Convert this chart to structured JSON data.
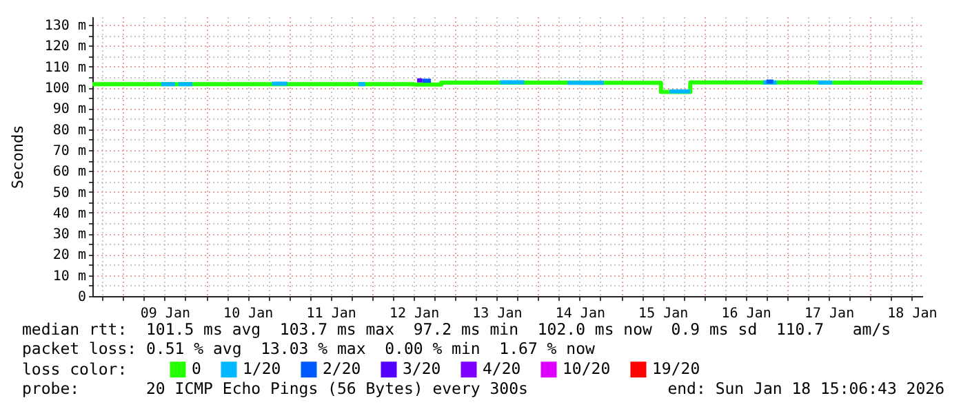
{
  "chart_data": {
    "type": "step",
    "ylabel": "Seconds",
    "legend_title": "loss color:",
    "legend": "bottom",
    "grid": true,
    "line_style": "solid",
    "marker": "none",
    "xlim": [
      "2026-01-08T15:06",
      "2026-01-18T15:06"
    ],
    "xticks": [
      {
        "value": "2026-01-08T18:00",
        "label": null
      },
      {
        "value": "2026-01-09T00:00",
        "label": null
      },
      {
        "value": "2026-01-09T06:00",
        "label": null
      },
      {
        "value": "2026-01-09T12:00",
        "label": "09 Jan"
      },
      {
        "value": "2026-01-09T18:00",
        "label": null
      },
      {
        "value": "2026-01-10T00:00",
        "label": null
      },
      {
        "value": "2026-01-10T06:00",
        "label": null
      },
      {
        "value": "2026-01-10T12:00",
        "label": "10 Jan"
      },
      {
        "value": "2026-01-10T18:00",
        "label": null
      },
      {
        "value": "2026-01-11T00:00",
        "label": null
      },
      {
        "value": "2026-01-11T06:00",
        "label": null
      },
      {
        "value": "2026-01-11T12:00",
        "label": "11 Jan"
      },
      {
        "value": "2026-01-11T18:00",
        "label": null
      },
      {
        "value": "2026-01-12T00:00",
        "label": null
      },
      {
        "value": "2026-01-12T06:00",
        "label": null
      },
      {
        "value": "2026-01-12T12:00",
        "label": "12 Jan"
      },
      {
        "value": "2026-01-12T18:00",
        "label": null
      },
      {
        "value": "2026-01-13T00:00",
        "label": null
      },
      {
        "value": "2026-01-13T06:00",
        "label": null
      },
      {
        "value": "2026-01-13T12:00",
        "label": "13 Jan"
      },
      {
        "value": "2026-01-13T18:00",
        "label": null
      },
      {
        "value": "2026-01-14T00:00",
        "label": null
      },
      {
        "value": "2026-01-14T06:00",
        "label": null
      },
      {
        "value": "2026-01-14T12:00",
        "label": "14 Jan"
      },
      {
        "value": "2026-01-14T18:00",
        "label": null
      },
      {
        "value": "2026-01-15T00:00",
        "label": null
      },
      {
        "value": "2026-01-15T06:00",
        "label": null
      },
      {
        "value": "2026-01-15T12:00",
        "label": "15 Jan"
      },
      {
        "value": "2026-01-15T18:00",
        "label": null
      },
      {
        "value": "2026-01-16T00:00",
        "label": null
      },
      {
        "value": "2026-01-16T06:00",
        "label": null
      },
      {
        "value": "2026-01-16T12:00",
        "label": "16 Jan"
      },
      {
        "value": "2026-01-16T18:00",
        "label": null
      },
      {
        "value": "2026-01-17T00:00",
        "label": null
      },
      {
        "value": "2026-01-17T06:00",
        "label": null
      },
      {
        "value": "2026-01-17T12:00",
        "label": "17 Jan"
      },
      {
        "value": "2026-01-17T18:00",
        "label": null
      },
      {
        "value": "2026-01-18T00:00",
        "label": null
      },
      {
        "value": "2026-01-18T06:00",
        "label": null
      },
      {
        "value": "2026-01-18T12:00",
        "label": "18 Jan"
      }
    ],
    "ylim": [
      0,
      134
    ],
    "yticks": [
      {
        "value": 0,
        "label": "0"
      },
      {
        "value": 5,
        "label": null
      },
      {
        "value": 10,
        "label": "10 m"
      },
      {
        "value": 15,
        "label": null
      },
      {
        "value": 20,
        "label": "20 m"
      },
      {
        "value": 25,
        "label": null
      },
      {
        "value": 30,
        "label": "30 m"
      },
      {
        "value": 35,
        "label": null
      },
      {
        "value": 40,
        "label": "40 m"
      },
      {
        "value": 45,
        "label": null
      },
      {
        "value": 50,
        "label": "50 m"
      },
      {
        "value": 55,
        "label": null
      },
      {
        "value": 60,
        "label": "60 m"
      },
      {
        "value": 65,
        "label": null
      },
      {
        "value": 70,
        "label": "70 m"
      },
      {
        "value": 75,
        "label": null
      },
      {
        "value": 80,
        "label": "80 m"
      },
      {
        "value": 85,
        "label": null
      },
      {
        "value": 90,
        "label": "90 m"
      },
      {
        "value": 95,
        "label": null
      },
      {
        "value": 100,
        "label": "100 m"
      },
      {
        "value": 105,
        "label": null
      },
      {
        "value": 110,
        "label": "110 m"
      },
      {
        "value": 115,
        "label": null
      },
      {
        "value": 120,
        "label": "120 m"
      },
      {
        "value": 125,
        "label": null
      },
      {
        "value": 130,
        "label": "130 m"
      }
    ],
    "series": [
      {
        "name": "0",
        "color": "#26ff00",
        "x": [
          "2026-01-08T15:06",
          "2026-01-09T12:00",
          "2026-01-10T12:00",
          "2026-01-11T12:00",
          "2026-01-12T12:00",
          "2026-01-12T20:00",
          "2026-01-13T12:00",
          "2026-01-14T12:00",
          "2026-01-15T11:30",
          "2026-01-15T20:00",
          "2026-01-16T12:00",
          "2026-01-17T12:00",
          "2026-01-18T15:06"
        ],
        "values": [
          101.6,
          101.6,
          101.6,
          101.6,
          101.4,
          102.3,
          102.3,
          102.2,
          97.9,
          102.4,
          102.4,
          102.3,
          102.3
        ]
      },
      {
        "name": "1/20",
        "color": "#00b8ff",
        "x": [
          "2026-01-09T11:00",
          "2026-01-09T15:00",
          "2026-01-09T15:30",
          "2026-01-09T16:00",
          "2026-01-09T20:00",
          "2026-01-09T20:30",
          "2026-01-10T19:00",
          "2026-01-10T23:30",
          "2026-01-11T00:00",
          "2026-01-11T20:00",
          "2026-01-11T22:00",
          "2026-01-11T22:30",
          "2026-01-13T13:00",
          "2026-01-13T20:00",
          "2026-01-13T20:30",
          "2026-01-14T08:30",
          "2026-01-14T19:00",
          "2026-01-14T19:30",
          "2026-01-15T14:00",
          "2026-01-15T20:00",
          "2026-01-15T20:30",
          "2026-01-16T17:00",
          "2026-01-16T21:00",
          "2026-01-16T21:30",
          "2026-01-17T09:00",
          "2026-01-17T13:00"
        ],
        "values": [
          101.6,
          101.6,
          null,
          101.6,
          101.6,
          null,
          101.8,
          101.8,
          null,
          101.6,
          101.6,
          null,
          102.5,
          102.5,
          null,
          102.2,
          102.2,
          null,
          98.1,
          98.1,
          null,
          102.4,
          102.4,
          null,
          102.3,
          102.3
        ]
      },
      {
        "name": "2/20",
        "color": "#0059ff",
        "x": [
          "2026-01-12T14:30",
          "2026-01-12T17:00",
          "2026-01-12T17:30",
          "2026-01-16T18:00",
          "2026-01-16T20:00"
        ],
        "values": [
          103.2,
          103.2,
          null,
          102.8,
          102.8
        ]
      },
      {
        "name": "3/20",
        "color": "#5500ff",
        "x": [
          "2026-01-12T13:00",
          "2026-01-12T14:30"
        ],
        "values": [
          103.4,
          103.4
        ]
      },
      {
        "name": "4/20",
        "color": "#7e00ff"
      },
      {
        "name": "10/20",
        "color": "#dd00ff"
      },
      {
        "name": "19/20",
        "color": "#ff0000"
      }
    ],
    "annotations": [
      "median rtt:  101.5 ms avg  103.7 ms max  97.2 ms min  102.0 ms now  0.9 ms sd  110.7   am/s",
      "packet loss: 0.51 % avg  13.03 % max  0.00 % min  1.67 % now",
      "probe:       20 ICMP Echo Pings (56 Bytes) every 300s",
      "end: Sun Jan 18 15:06:43 2026"
    ]
  }
}
